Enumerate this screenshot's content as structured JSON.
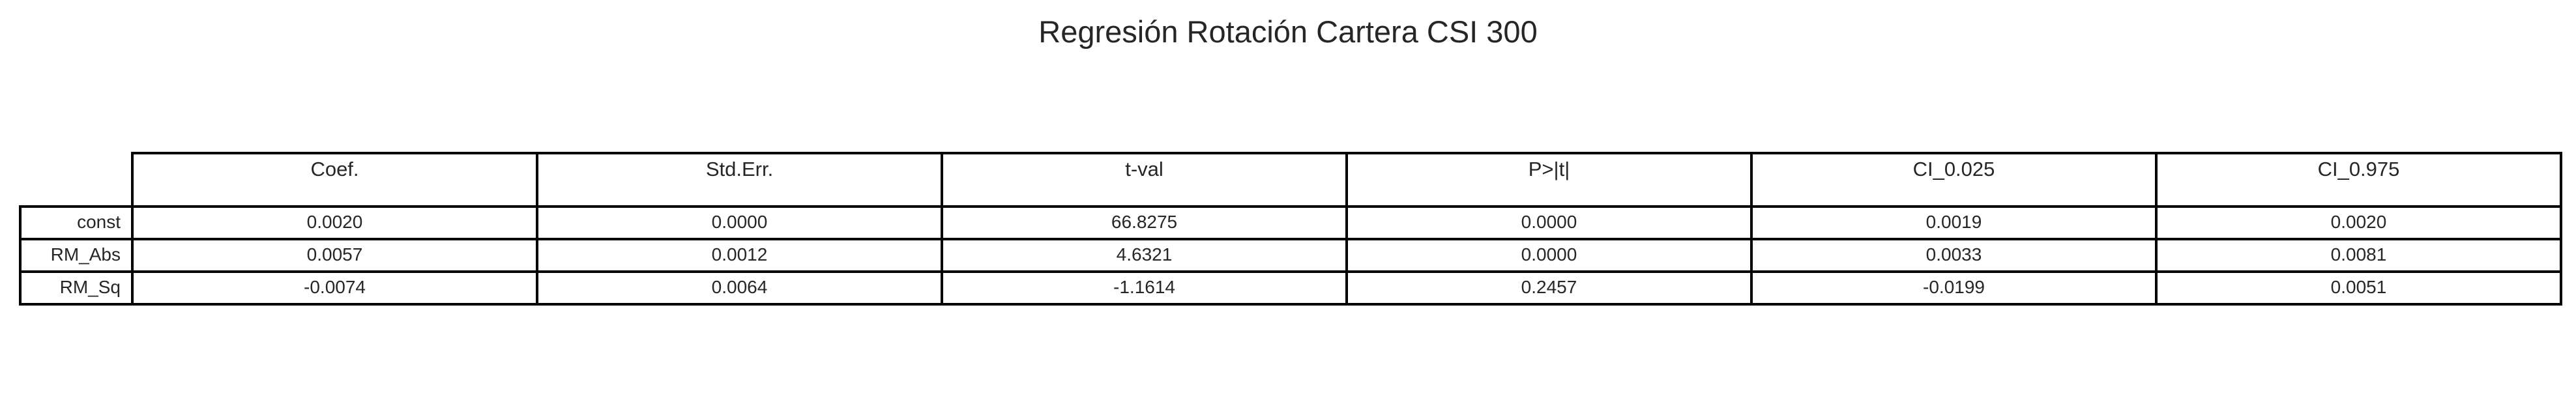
{
  "chart_data": {
    "type": "table",
    "title": "Regresión Rotación Cartera CSI 300",
    "columns": [
      "Coef.",
      "Std.Err.",
      "t-val",
      "P>|t|",
      "CI_0.025",
      "CI_0.975"
    ],
    "rows": [
      {
        "label": "const",
        "values": [
          "0.0020",
          "0.0000",
          "66.8275",
          "0.0000",
          "0.0019",
          "0.0020"
        ]
      },
      {
        "label": "RM_Abs",
        "values": [
          "0.0057",
          "0.0012",
          "4.6321",
          "0.0000",
          "0.0033",
          "0.0081"
        ]
      },
      {
        "label": "RM_Sq",
        "values": [
          "-0.0074",
          "0.0064",
          "-1.1614",
          "0.2457",
          "-0.0199",
          "0.0051"
        ]
      }
    ]
  }
}
